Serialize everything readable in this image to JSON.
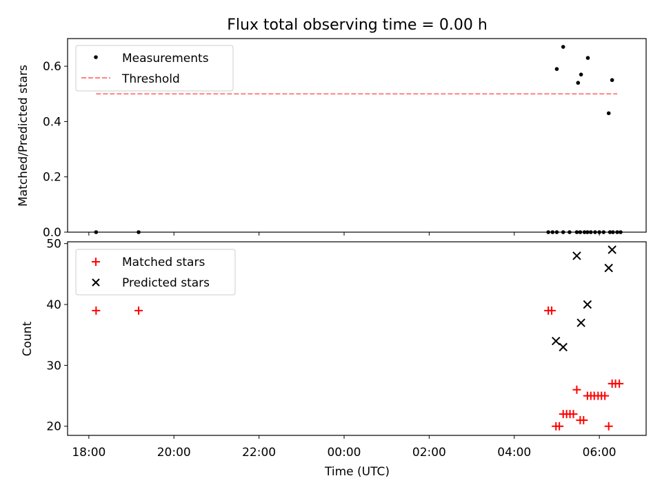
{
  "chart_data": [
    {
      "type": "scatter",
      "title": "Flux total observing time = 0.00 h",
      "ylabel": "Matched/Predicted stars",
      "xlabel": "",
      "xlim": [
        17.5,
        31.1
      ],
      "ylim": [
        0,
        0.7
      ],
      "yticks": [
        0.0,
        0.2,
        0.4,
        0.6
      ],
      "ytick_labels": [
        "0.0",
        "0.2",
        "0.4",
        "0.6"
      ],
      "legend_position": "upper-left",
      "threshold": {
        "name": "Threshold",
        "y": 0.5,
        "x_range": [
          18.17,
          30.42
        ],
        "color": "#ff8080"
      },
      "series": [
        {
          "name": "Measurements",
          "marker": "dot",
          "color": "#000000",
          "x": [
            18.17,
            19.17,
            28.8,
            28.9,
            29.0,
            29.15,
            29.3,
            29.47,
            29.55,
            29.65,
            29.72,
            29.8,
            29.9,
            30.0,
            30.1,
            30.25,
            30.32,
            30.42,
            30.5,
            29.0,
            29.15,
            29.5,
            29.57,
            29.73,
            30.22,
            30.3
          ],
          "y": [
            0.0,
            0.0,
            0.0,
            0.0,
            0.0,
            0.0,
            0.0,
            0.0,
            0.0,
            0.0,
            0.0,
            0.0,
            0.0,
            0.0,
            0.0,
            0.0,
            0.0,
            0.0,
            0.0,
            0.59,
            0.67,
            0.54,
            0.57,
            0.63,
            0.43,
            0.55
          ]
        }
      ]
    },
    {
      "type": "scatter",
      "title": "",
      "ylabel": "Count",
      "xlabel": "Time (UTC)",
      "xlim": [
        17.5,
        31.1
      ],
      "ylim": [
        18.5,
        50.3
      ],
      "yticks": [
        20,
        30,
        40,
        50
      ],
      "ytick_labels": [
        "20",
        "30",
        "40",
        "50"
      ],
      "xticks": [
        18,
        20,
        22,
        24,
        26,
        28,
        30
      ],
      "xtick_labels": [
        "18:00",
        "20:00",
        "22:00",
        "00:00",
        "02:00",
        "04:00",
        "06:00"
      ],
      "legend_position": "upper-left",
      "series": [
        {
          "name": "Matched stars",
          "marker": "plus",
          "color": "#ff0000",
          "x": [
            18.17,
            19.17,
            28.8,
            28.88,
            28.98,
            29.06,
            29.15,
            29.23,
            29.31,
            29.39,
            29.47,
            29.55,
            29.63,
            29.72,
            29.8,
            29.88,
            29.97,
            30.05,
            30.13,
            30.22,
            30.3,
            30.38,
            30.47
          ],
          "y": [
            39,
            39,
            39,
            39,
            20,
            20,
            22,
            22,
            22,
            22,
            26,
            21,
            21,
            25,
            25,
            25,
            25,
            25,
            25,
            20,
            27,
            27,
            27
          ]
        },
        {
          "name": "Predicted stars",
          "marker": "x",
          "color": "#000000",
          "x": [
            28.98,
            29.15,
            29.47,
            29.57,
            29.72,
            30.22,
            30.3
          ],
          "y": [
            34,
            33,
            48,
            37,
            40,
            46,
            49
          ]
        }
      ]
    }
  ]
}
